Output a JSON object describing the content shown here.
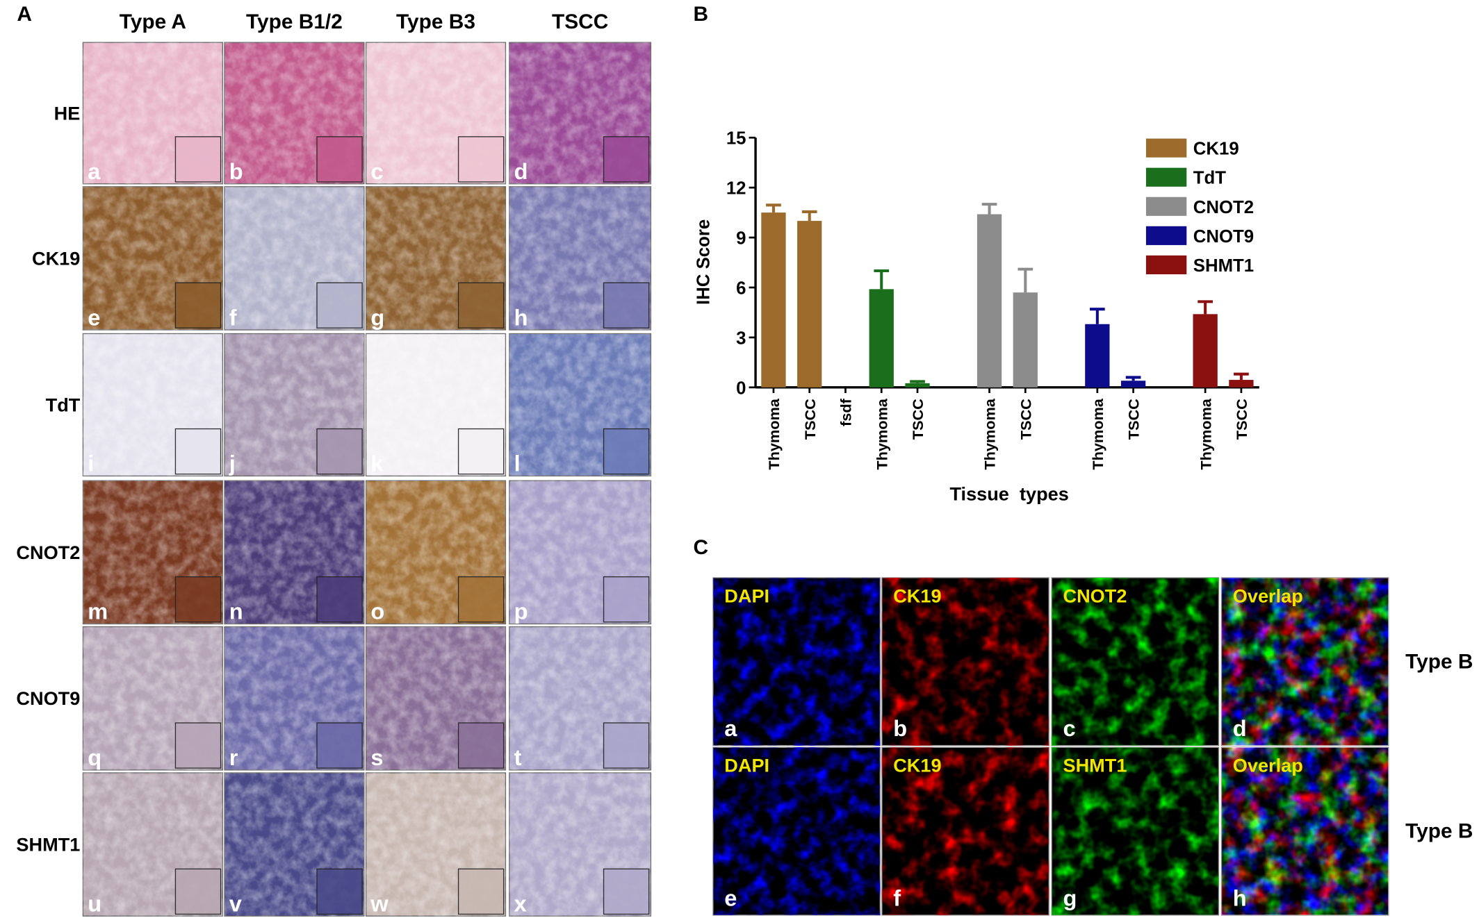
{
  "panel_labels": [
    "A",
    "B",
    "C"
  ],
  "panel_a": {
    "columns": [
      "Type A",
      "Type B1/2",
      "Type B3",
      "TSCC"
    ],
    "rows": [
      "HE",
      "CK19",
      "TdT",
      "CNOT2",
      "CNOT9",
      "SHMT1"
    ],
    "letters": [
      "a",
      "b",
      "c",
      "d",
      "e",
      "f",
      "g",
      "h",
      "i",
      "j",
      "k",
      "l",
      "m",
      "n",
      "o",
      "p",
      "q",
      "r",
      "s",
      "t",
      "u",
      "v",
      "w",
      "x"
    ]
  },
  "chart_data": {
    "type": "bar",
    "y_label": "IHC Score",
    "x_label": "Tissue  types",
    "categories": [
      "Thymoma",
      "TSCC",
      "fsdf",
      "Thymoma",
      "TSCC",
      null,
      "Thymoma",
      "TSCC",
      null,
      "Thymoma",
      "TSCC",
      null,
      "Thymoma",
      "TSCC"
    ],
    "ylim": [
      0,
      15
    ],
    "yticks": [
      0,
      3,
      6,
      9,
      12,
      15
    ],
    "legend": "upper right",
    "series": [
      {
        "name": "CK19",
        "color": "#9c6a2a",
        "values": [
          10.5,
          10.0,
          null,
          null,
          null,
          null,
          null,
          null,
          null,
          null,
          null,
          null,
          null,
          null
        ],
        "errors": [
          0.45,
          0.55,
          null,
          null,
          null,
          null,
          null,
          null,
          null,
          null,
          null,
          null,
          null,
          null
        ]
      },
      {
        "name": "TdT",
        "color": "#1b6e1b",
        "values": [
          null,
          null,
          null,
          5.9,
          0.25,
          null,
          null,
          null,
          null,
          null,
          null,
          null,
          null,
          null
        ],
        "errors": [
          null,
          null,
          null,
          1.1,
          0.1,
          null,
          null,
          null,
          null,
          null,
          null,
          null,
          null,
          null
        ]
      },
      {
        "name": "CNOT2",
        "color": "#8c8c8c",
        "values": [
          null,
          null,
          null,
          null,
          null,
          null,
          10.4,
          5.7,
          null,
          null,
          null,
          null,
          null,
          null
        ],
        "errors": [
          null,
          null,
          null,
          null,
          null,
          null,
          0.6,
          1.4,
          null,
          null,
          null,
          null,
          null,
          null
        ]
      },
      {
        "name": "CNOT9",
        "color": "#0c0c8c",
        "values": [
          null,
          null,
          null,
          null,
          null,
          null,
          null,
          null,
          null,
          3.8,
          0.4,
          null,
          null,
          null
        ],
        "errors": [
          null,
          null,
          null,
          null,
          null,
          null,
          null,
          null,
          null,
          0.9,
          0.2,
          null,
          null,
          null
        ]
      },
      {
        "name": "SHMT1",
        "color": "#8b1010",
        "values": [
          null,
          null,
          null,
          null,
          null,
          null,
          null,
          null,
          null,
          null,
          null,
          null,
          4.4,
          0.45
        ],
        "errors": [
          null,
          null,
          null,
          null,
          null,
          null,
          null,
          null,
          null,
          null,
          null,
          null,
          0.75,
          0.35
        ]
      }
    ]
  },
  "panel_c": {
    "rows": [
      {
        "channels": [
          "DAPI",
          "CK19",
          "CNOT2",
          "Overlap"
        ],
        "letters": [
          "a",
          "b",
          "c",
          "d"
        ],
        "label": "Type B"
      },
      {
        "channels": [
          "DAPI",
          "CK19",
          "SHMT1",
          "Overlap"
        ],
        "letters": [
          "e",
          "f",
          "g",
          "h"
        ],
        "label": "Type B"
      }
    ]
  }
}
